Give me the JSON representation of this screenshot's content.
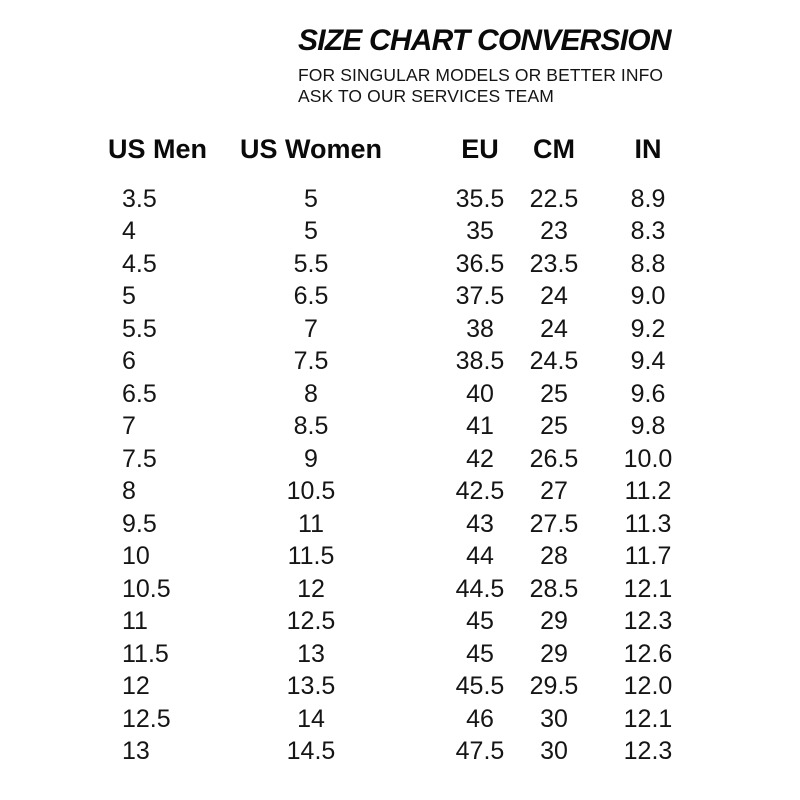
{
  "header": {
    "title": "SIZE CHART CONVERSION",
    "subtitle_line1": "FOR SINGULAR MODELS OR BETTER INFO",
    "subtitle_line2": "ASK TO OUR SERVICES TEAM"
  },
  "chart_data": {
    "type": "table",
    "title": "SIZE CHART CONVERSION",
    "columns": [
      "US Men",
      "US Women",
      "EU",
      "CM",
      "IN"
    ],
    "rows": [
      [
        "3.5",
        "5",
        "35.5",
        "22.5",
        "8.9"
      ],
      [
        "4",
        "5",
        "35",
        "23",
        "8.3"
      ],
      [
        "4.5",
        "5.5",
        "36.5",
        "23.5",
        "8.8"
      ],
      [
        "5",
        "6.5",
        "37.5",
        "24",
        "9.0"
      ],
      [
        "5.5",
        "7",
        "38",
        "24",
        "9.2"
      ],
      [
        "6",
        "7.5",
        "38.5",
        "24.5",
        "9.4"
      ],
      [
        "6.5",
        "8",
        "40",
        "25",
        "9.6"
      ],
      [
        "7",
        "8.5",
        "41",
        "25",
        "9.8"
      ],
      [
        "7.5",
        "9",
        "42",
        "26.5",
        "10.0"
      ],
      [
        "8",
        "10.5",
        "42.5",
        "27",
        "11.2"
      ],
      [
        "9.5",
        "11",
        "43",
        "27.5",
        "11.3"
      ],
      [
        "10",
        "11.5",
        "44",
        "28",
        "11.7"
      ],
      [
        "10.5",
        "12",
        "44.5",
        "28.5",
        "12.1"
      ],
      [
        "11",
        "12.5",
        "45",
        "29",
        "12.3"
      ],
      [
        "11.5",
        "13",
        "45",
        "29",
        "12.6"
      ],
      [
        "12",
        "13.5",
        "45.5",
        "29.5",
        "12.0"
      ],
      [
        "12.5",
        "14",
        "46",
        "30",
        "12.1"
      ],
      [
        "13",
        "14.5",
        "47.5",
        "30",
        "12.3"
      ]
    ]
  },
  "colors": {
    "background": "#ffffff",
    "text": "#101010"
  }
}
